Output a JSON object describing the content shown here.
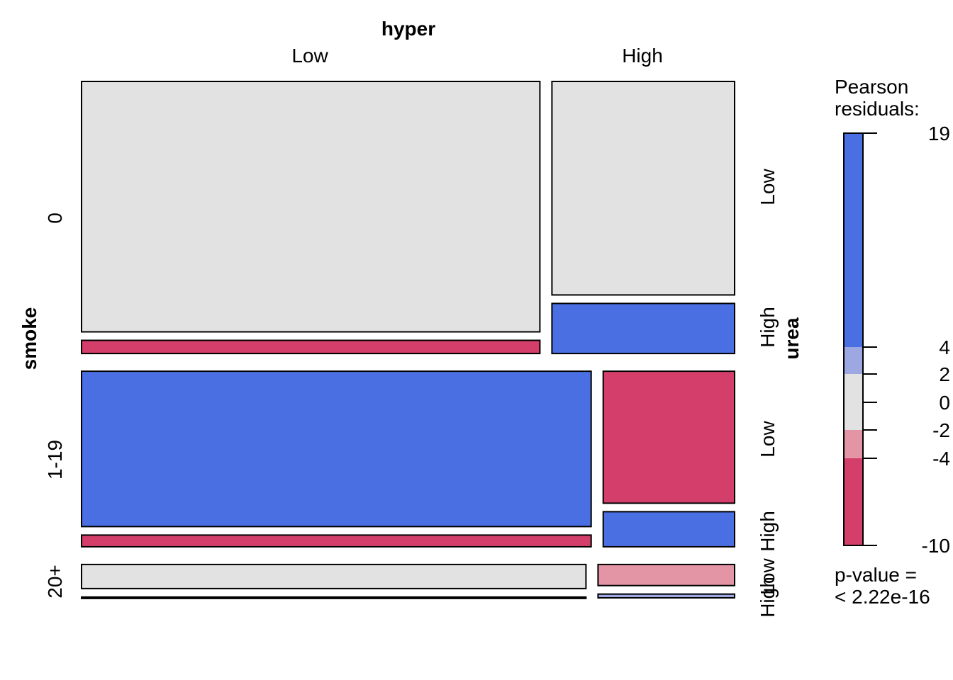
{
  "chart_data": {
    "type": "mosaic",
    "variables": {
      "column": {
        "name": "hyper",
        "levels": [
          "Low",
          "High"
        ]
      },
      "row": {
        "name": "smoke",
        "levels": [
          "0",
          "1-19",
          "20+"
        ]
      },
      "inner": {
        "name": "urea",
        "levels": [
          "Low",
          "High"
        ]
      }
    },
    "smoke_proportions": [
      0.465,
      0.3,
      0.057
    ],
    "hyper_proportion_within_smoke": {
      "0": [
        0.715,
        0.285
      ],
      "1-19": [
        0.795,
        0.205
      ],
      "20+": [
        0.787,
        0.213
      ]
    },
    "urea_proportion_within_cell": [
      {
        "smoke": "0",
        "hyper": "Low",
        "urea": [
          0.95,
          0.05
        ],
        "residual_class": [
          0,
          -10
        ]
      },
      {
        "smoke": "0",
        "hyper": "High",
        "urea": [
          0.81,
          0.19
        ],
        "residual_class": [
          0,
          10
        ]
      },
      {
        "smoke": "1-19",
        "hyper": "Low",
        "urea": [
          0.93,
          0.07
        ],
        "residual_class": [
          10,
          -10
        ]
      },
      {
        "smoke": "1-19",
        "hyper": "High",
        "urea": [
          0.79,
          0.21
        ],
        "residual_class": [
          -10,
          10
        ]
      },
      {
        "smoke": "20+",
        "hyper": "Low",
        "urea": [
          0.97,
          0.03
        ],
        "residual_class": [
          0,
          -10
        ]
      },
      {
        "smoke": "20+",
        "hyper": "High",
        "urea": [
          0.85,
          0.15
        ],
        "residual_class": [
          -3,
          3
        ]
      }
    ],
    "legend": {
      "title_line1": "Pearson",
      "title_line2": "residuals:",
      "ticks": [
        "19",
        "4",
        "2",
        "0",
        "-2",
        "-4",
        "-10"
      ],
      "tick_values": [
        19,
        4,
        2,
        0,
        -2,
        -4,
        -10
      ],
      "bands": [
        {
          "from": 4,
          "to": 19,
          "color": "#4A6FE3"
        },
        {
          "from": 2,
          "to": 4,
          "color": "#9DA8E2"
        },
        {
          "from": -2,
          "to": 2,
          "color": "#E2E2E2"
        },
        {
          "from": -4,
          "to": -2,
          "color": "#E495A5"
        },
        {
          "from": -10,
          "to": -4,
          "color": "#D33F6A"
        }
      ]
    },
    "pvalue_line1": "p-value =",
    "pvalue_line2": "< 2.22e-16",
    "colors": {
      "strong_positive": "#4A6FE3",
      "weak_positive": "#9DA8E2",
      "neutral": "#E2E2E2",
      "weak_negative": "#E495A5",
      "strong_negative": "#D33F6A"
    }
  }
}
